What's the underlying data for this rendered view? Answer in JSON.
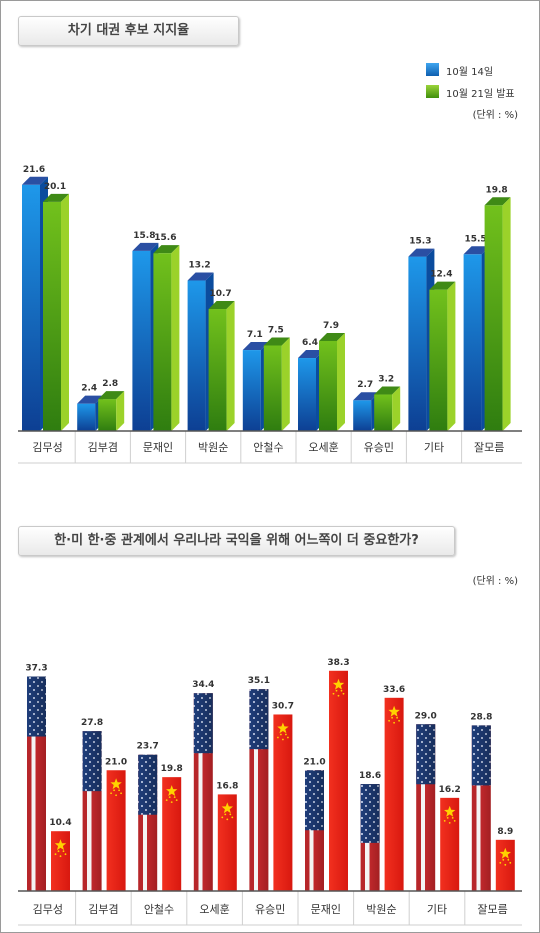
{
  "chart1": {
    "title": "차기 대권 후보 지지율",
    "unit": "(단위 : %)",
    "legend": [
      {
        "label": "10월 14일",
        "color": "#1a7fd4"
      },
      {
        "label": "10월 21일 발표",
        "color": "#5cb518"
      }
    ]
  },
  "chart2": {
    "title": "한·미 한·중 관계에서 우리나라 국익을 위해 어느쪽이 더 중요한가?",
    "unit": "(단위 : %)"
  },
  "colors": {
    "blue_front": "#1a8be0",
    "green_front": "#6ab81c",
    "usa_blue": "#1f3d7a",
    "usa_red": "#c0282c",
    "china_red": "#e8201c",
    "star": "#ffd200"
  },
  "chart_data": [
    {
      "type": "bar",
      "title": "차기 대권 후보 지지율",
      "categories": [
        "김무성",
        "김부겸",
        "문재인",
        "박원순",
        "안철수",
        "오세훈",
        "유승민",
        "기타",
        "잘모름"
      ],
      "series": [
        {
          "name": "10월 14일",
          "values": [
            21.6,
            2.4,
            15.8,
            13.2,
            7.1,
            6.4,
            2.7,
            15.3,
            15.5
          ]
        },
        {
          "name": "10월 21일 발표",
          "values": [
            20.1,
            2.8,
            15.6,
            10.7,
            7.5,
            7.9,
            3.2,
            12.4,
            19.8
          ]
        }
      ],
      "unit": "(단위 : %)",
      "ylim": [
        0,
        24
      ]
    },
    {
      "type": "bar",
      "title": "한·미 한·중 관계에서 우리나라 국익을 위해 어느쪽이 더 중요한가?",
      "categories": [
        "김무성",
        "김부겸",
        "안철수",
        "오세훈",
        "유승민",
        "문재인",
        "박원순",
        "기타",
        "잘모름"
      ],
      "series": [
        {
          "values": [
            37.3,
            27.8,
            23.7,
            34.4,
            35.1,
            21.0,
            18.6,
            29.0,
            28.8
          ]
        },
        {
          "values": [
            10.4,
            21.0,
            19.8,
            16.8,
            30.7,
            38.3,
            33.6,
            16.2,
            8.9
          ]
        }
      ],
      "unit": "(단위 : %)",
      "ylim": [
        0,
        40
      ]
    }
  ]
}
